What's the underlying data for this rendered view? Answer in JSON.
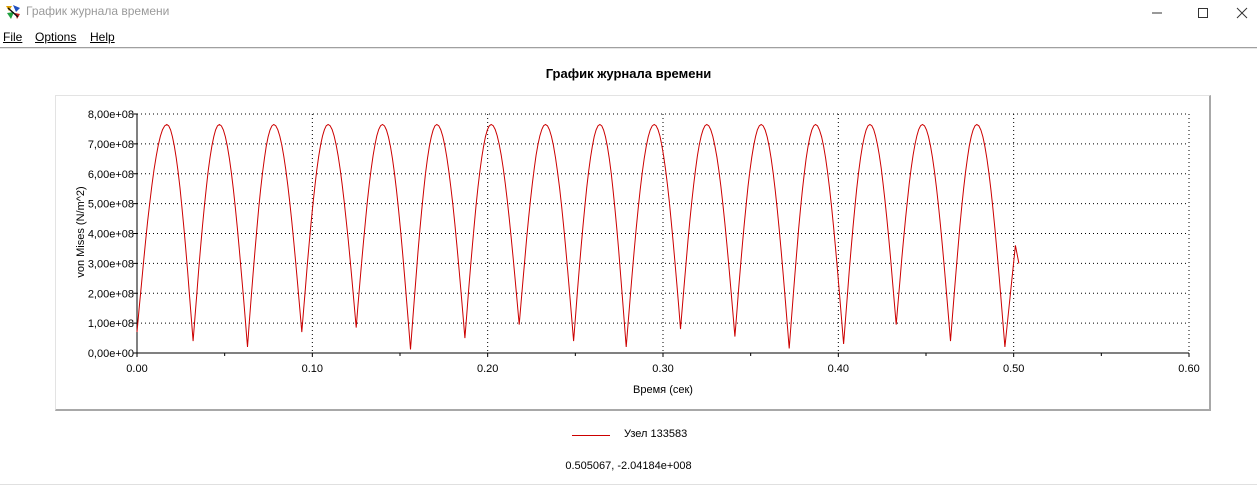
{
  "window": {
    "title": "График журнала времени",
    "icon": "app-icon"
  },
  "menu": {
    "items": [
      "File",
      "Options",
      "Help"
    ]
  },
  "chart_data": {
    "type": "line",
    "title": "График журнала времени",
    "xlabel": "Время (сек)",
    "ylabel": "von Mises (N/m^2)",
    "xlim": [
      0,
      0.6
    ],
    "ylim": [
      0,
      800000000
    ],
    "x_ticks": [
      "0.00",
      "0.10",
      "0.20",
      "0.30",
      "0.40",
      "0.50",
      "0.60"
    ],
    "y_ticks": [
      "0,00e+00",
      "1,00e+08",
      "2,00e+08",
      "3,00e+08",
      "4,00e+08",
      "5,00e+08",
      "6,00e+08",
      "7,00e+08",
      "8,00e+08"
    ],
    "grid": true,
    "legend_position": "bottom",
    "series": [
      {
        "name": "Узел 133583",
        "color": "#cc0000",
        "peak_times": [
          0.017,
          0.047,
          0.078,
          0.109,
          0.14,
          0.171,
          0.202,
          0.233,
          0.264,
          0.295,
          0.325,
          0.356,
          0.387,
          0.418,
          0.448,
          0.479
        ],
        "peak_value": 765000000,
        "trough_times": [
          0.0,
          0.032,
          0.063,
          0.094,
          0.125,
          0.156,
          0.187,
          0.218,
          0.249,
          0.279,
          0.31,
          0.341,
          0.372,
          0.403,
          0.433,
          0.464,
          0.495
        ],
        "trough_values": [
          70000000,
          40000000,
          20000000,
          70000000,
          85000000,
          12000000,
          50000000,
          95000000,
          40000000,
          20000000,
          80000000,
          55000000,
          15000000,
          30000000,
          95000000,
          40000000,
          20000000
        ],
        "end_point": [
          0.503,
          300000000
        ],
        "end_peak": [
          0.501,
          360000000
        ]
      }
    ]
  },
  "readout": "0.505067, -2.04184e+008"
}
